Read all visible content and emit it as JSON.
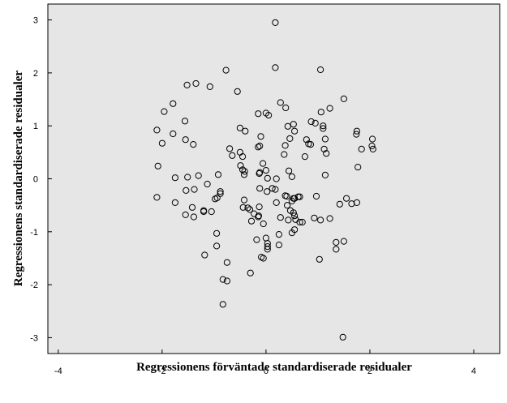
{
  "chart_data": {
    "type": "scatter",
    "xlabel": "Regressionens förväntade standardiserade residualer",
    "ylabel": "Regressionens standardiserade residualer",
    "xlim": [
      -4.2,
      4.5
    ],
    "ylim": [
      -3.3,
      3.3
    ],
    "xticks": [
      -4,
      -2,
      0,
      2,
      4
    ],
    "yticks": [
      3,
      2,
      1,
      0,
      -1,
      -2,
      -3
    ],
    "xtick_labels": [
      "-4",
      "-2",
      "0",
      "2",
      "4"
    ],
    "ytick_labels": [
      "3",
      "2",
      "1",
      "0",
      "-1",
      "-2",
      "-3"
    ],
    "grid": false,
    "plot_background": "#e6e6e6",
    "marker": "open-circle",
    "points": [
      [
        0.18,
        2.95
      ],
      [
        0.18,
        2.1
      ],
      [
        -0.77,
        2.05
      ],
      [
        1.05,
        2.06
      ],
      [
        -1.52,
        1.77
      ],
      [
        -1.35,
        1.8
      ],
      [
        -1.08,
        1.74
      ],
      [
        -0.55,
        1.65
      ],
      [
        1.5,
        1.51
      ],
      [
        -1.79,
        1.42
      ],
      [
        -1.96,
        1.27
      ],
      [
        0.28,
        1.44
      ],
      [
        0.38,
        1.34
      ],
      [
        1.23,
        1.33
      ],
      [
        1.06,
        1.26
      ],
      [
        -0.15,
        1.23
      ],
      [
        0.0,
        1.24
      ],
      [
        0.05,
        1.2
      ],
      [
        0.42,
        0.99
      ],
      [
        0.53,
        1.03
      ],
      [
        0.87,
        1.08
      ],
      [
        0.55,
        0.9
      ],
      [
        0.95,
        1.05
      ],
      [
        1.1,
        1.0
      ],
      [
        1.1,
        0.95
      ],
      [
        -1.56,
        1.09
      ],
      [
        -2.1,
        0.92
      ],
      [
        -1.79,
        0.85
      ],
      [
        -0.5,
        0.96
      ],
      [
        -0.4,
        0.9
      ],
      [
        -0.1,
        0.8
      ],
      [
        1.75,
        0.9
      ],
      [
        1.74,
        0.84
      ],
      [
        -1.55,
        0.74
      ],
      [
        -2.0,
        0.67
      ],
      [
        -1.4,
        0.65
      ],
      [
        -0.15,
        0.6
      ],
      [
        -0.7,
        0.57
      ],
      [
        -0.12,
        0.62
      ],
      [
        0.37,
        0.63
      ],
      [
        0.46,
        0.76
      ],
      [
        0.78,
        0.74
      ],
      [
        0.82,
        0.66
      ],
      [
        0.86,
        0.65
      ],
      [
        1.14,
        0.75
      ],
      [
        1.12,
        0.56
      ],
      [
        2.05,
        0.75
      ],
      [
        2.04,
        0.62
      ],
      [
        2.06,
        0.56
      ],
      [
        1.84,
        0.56
      ],
      [
        -0.5,
        0.5
      ],
      [
        -0.65,
        0.44
      ],
      [
        -0.45,
        0.42
      ],
      [
        0.35,
        0.46
      ],
      [
        0.75,
        0.42
      ],
      [
        1.16,
        0.48
      ],
      [
        -2.08,
        0.24
      ],
      [
        -0.49,
        0.25
      ],
      [
        -0.45,
        0.17
      ],
      [
        -0.41,
        0.14
      ],
      [
        -0.42,
        0.08
      ],
      [
        -0.13,
        0.1
      ],
      [
        -0.06,
        0.29
      ],
      [
        0.0,
        0.16
      ],
      [
        0.44,
        0.15
      ],
      [
        1.14,
        0.07
      ],
      [
        1.77,
        0.22
      ],
      [
        -0.12,
        0.12
      ],
      [
        0.5,
        0.04
      ],
      [
        0.03,
        0.01
      ],
      [
        0.2,
        0.0
      ],
      [
        -1.75,
        0.02
      ],
      [
        -1.51,
        0.03
      ],
      [
        -1.3,
        0.06
      ],
      [
        -0.92,
        0.08
      ],
      [
        -1.13,
        -0.1
      ],
      [
        -1.54,
        -0.22
      ],
      [
        -1.38,
        -0.2
      ],
      [
        -0.88,
        -0.24
      ],
      [
        -0.88,
        -0.28
      ],
      [
        -0.94,
        -0.36
      ],
      [
        -0.98,
        -0.38
      ],
      [
        -0.12,
        -0.18
      ],
      [
        0.02,
        -0.24
      ],
      [
        0.12,
        -0.18
      ],
      [
        0.18,
        -0.2
      ],
      [
        0.37,
        -0.32
      ],
      [
        0.4,
        -0.33
      ],
      [
        0.53,
        -0.37
      ],
      [
        0.55,
        -0.37
      ],
      [
        0.62,
        -0.34
      ],
      [
        0.65,
        -0.34
      ],
      [
        0.5,
        -0.42
      ],
      [
        0.97,
        -0.33
      ],
      [
        1.55,
        -0.37
      ],
      [
        1.65,
        -0.47
      ],
      [
        1.75,
        -0.45
      ],
      [
        1.42,
        -0.48
      ],
      [
        -2.1,
        -0.35
      ],
      [
        -1.75,
        -0.45
      ],
      [
        -1.42,
        -0.54
      ],
      [
        -1.55,
        -0.68
      ],
      [
        -1.39,
        -0.72
      ],
      [
        -1.2,
        -0.6
      ],
      [
        -1.2,
        -0.62
      ],
      [
        -1.05,
        -0.62
      ],
      [
        -0.42,
        -0.4
      ],
      [
        -0.44,
        -0.54
      ],
      [
        -0.35,
        -0.55
      ],
      [
        -0.31,
        -0.58
      ],
      [
        -0.13,
        -0.53
      ],
      [
        -0.23,
        -0.66
      ],
      [
        -0.14,
        -0.7
      ],
      [
        -0.15,
        -0.72
      ],
      [
        -0.28,
        -0.8
      ],
      [
        0.2,
        -0.45
      ],
      [
        0.28,
        -0.73
      ],
      [
        0.41,
        -0.5
      ],
      [
        0.47,
        -0.6
      ],
      [
        0.53,
        -0.64
      ],
      [
        0.55,
        -0.7
      ],
      [
        0.43,
        -0.78
      ],
      [
        0.57,
        -0.77
      ],
      [
        0.65,
        -0.82
      ],
      [
        0.7,
        -0.82
      ],
      [
        0.93,
        -0.74
      ],
      [
        1.05,
        -0.78
      ],
      [
        1.23,
        -0.75
      ],
      [
        -0.05,
        -0.85
      ],
      [
        0.55,
        -0.96
      ],
      [
        -0.95,
        -1.03
      ],
      [
        0.25,
        -1.05
      ],
      [
        -0.18,
        -1.15
      ],
      [
        0.0,
        -1.12
      ],
      [
        0.5,
        -1.02
      ],
      [
        0.03,
        -1.22
      ],
      [
        0.03,
        -1.28
      ],
      [
        0.03,
        -1.33
      ],
      [
        0.25,
        -1.25
      ],
      [
        -0.95,
        -1.27
      ],
      [
        1.35,
        -1.2
      ],
      [
        1.5,
        -1.18
      ],
      [
        1.35,
        -1.33
      ],
      [
        -1.18,
        -1.44
      ],
      [
        -0.05,
        -1.5
      ],
      [
        -0.09,
        -1.48
      ],
      [
        1.03,
        -1.52
      ],
      [
        -0.75,
        -1.58
      ],
      [
        -0.3,
        -1.78
      ],
      [
        -0.83,
        -1.9
      ],
      [
        -0.75,
        -1.93
      ],
      [
        -0.83,
        -2.37
      ],
      [
        1.48,
        -2.99
      ]
    ]
  }
}
